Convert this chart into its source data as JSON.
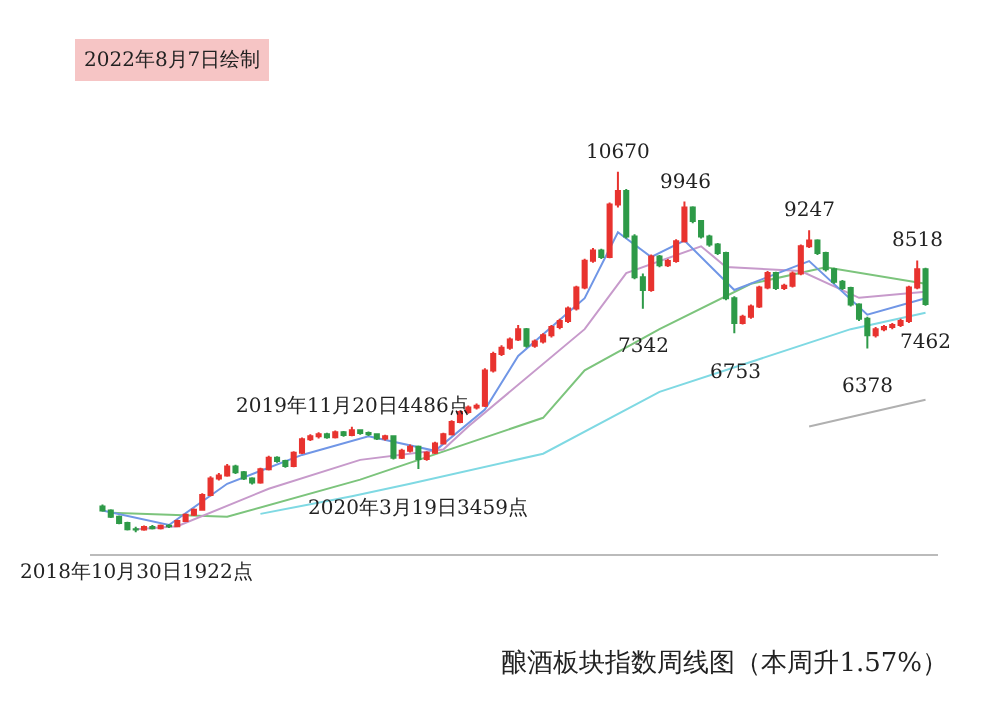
{
  "chart_data": {
    "type": "candlestick",
    "title": "酿酒板块指数周线图（本周升1.57%）",
    "categories": [
      null,
      null,
      null,
      null,
      null,
      null,
      null,
      null,
      null,
      null,
      null,
      null,
      null,
      null,
      null,
      null,
      null,
      null,
      null,
      null,
      null,
      null,
      null,
      null,
      null,
      null,
      null,
      null,
      null,
      null,
      null,
      null,
      null,
      null,
      null,
      null,
      null,
      null,
      null,
      null,
      null,
      null,
      null,
      null,
      null,
      null,
      null,
      null,
      null,
      null,
      null,
      null,
      null,
      null,
      null,
      null,
      null,
      null,
      null,
      null,
      null,
      null,
      null,
      null,
      null,
      null,
      null,
      null,
      null,
      null,
      null,
      null,
      null,
      null,
      null,
      null,
      null,
      null,
      null,
      null,
      null,
      null,
      null,
      null,
      null,
      null,
      null,
      null,
      null,
      null,
      null,
      null,
      null,
      null,
      null,
      null,
      null,
      null,
      null,
      null
    ],
    "colors": [
      "#2e9a48",
      "#2e9a48",
      "#2e9a48",
      "#2e9a48",
      "#2e9a48",
      "#e8332f",
      "#2e9a48",
      "#e8332f",
      "#2e9a48",
      "#e8332f",
      "#e8332f",
      "#e8332f",
      "#e8332f",
      "#e8332f",
      "#e8332f",
      "#e8332f",
      "#2e9a48",
      "#2e9a48",
      "#2e9a48",
      "#e8332f",
      "#e8332f",
      "#2e9a48",
      "#2e9a48",
      "#e8332f",
      "#e8332f",
      "#e8332f",
      "#e8332f",
      "#2e9a48",
      "#e8332f",
      "#2e9a48",
      "#e8332f",
      "#2e9a48",
      "#2e9a48",
      "#2e9a48",
      "#e8332f",
      "#2e9a48",
      "#e8332f",
      "#e8332f",
      "#2e9a48",
      "#e8332f",
      "#e8332f",
      "#e8332f",
      "#e8332f",
      "#e8332f",
      "#e8332f",
      "#e8332f",
      "#e8332f",
      "#e8332f",
      "#e8332f",
      "#e8332f",
      "#e8332f",
      "#2e9a48",
      "#e8332f",
      "#e8332f",
      "#e8332f",
      "#e8332f",
      "#e8332f",
      "#e8332f",
      "#e8332f",
      "#e8332f",
      "#2e9a48",
      "#e8332f",
      "#e8332f",
      "#2e9a48",
      "#2e9a48",
      "#2e9a48",
      "#e8332f",
      "#2e9a48",
      "#e8332f",
      "#e8332f",
      "#e8332f",
      "#2e9a48",
      "#2e9a48",
      "#2e9a48",
      "#2e9a48",
      "#2e9a48",
      "#2e9a48",
      "#e8332f",
      "#e8332f",
      "#e8332f",
      "#e8332f",
      "#2e9a48",
      "#e8332f",
      "#e8332f",
      "#e8332f",
      "#e8332f",
      "#2e9a48",
      "#2e9a48",
      "#2e9a48",
      "#2e9a48",
      "#2e9a48",
      "#2e9a48",
      "#2e9a48",
      "#e8332f",
      "#e8332f",
      "#e8332f",
      "#e8332f",
      "#e8332f",
      "#e8332f",
      "#2e9a48"
    ],
    "ohlc": [
      [
        2550,
        2600,
        2420,
        2450
      ],
      [
        2450,
        2480,
        2270,
        2300
      ],
      [
        2300,
        2330,
        2120,
        2150
      ],
      [
        2150,
        2180,
        1970,
        2000
      ],
      [
        2000,
        2060,
        1922,
        1990
      ],
      [
        1990,
        2090,
        1960,
        2050
      ],
      [
        2050,
        2100,
        1990,
        2020
      ],
      [
        2020,
        2110,
        1990,
        2080
      ],
      [
        2080,
        2120,
        2030,
        2070
      ],
      [
        2070,
        2230,
        2050,
        2200
      ],
      [
        2200,
        2380,
        2180,
        2350
      ],
      [
        2350,
        2500,
        2320,
        2470
      ],
      [
        2470,
        2870,
        2450,
        2830
      ],
      [
        2830,
        3280,
        2800,
        3230
      ],
      [
        3230,
        3360,
        3180,
        3300
      ],
      [
        3300,
        3580,
        3270,
        3520
      ],
      [
        3520,
        3560,
        3340,
        3380
      ],
      [
        3380,
        3410,
        3190,
        3230
      ],
      [
        3230,
        3260,
        3080,
        3130
      ],
      [
        3130,
        3490,
        3100,
        3450
      ],
      [
        3450,
        3780,
        3420,
        3730
      ],
      [
        3730,
        3770,
        3610,
        3650
      ],
      [
        3650,
        3680,
        3490,
        3530
      ],
      [
        3530,
        3890,
        3500,
        3850
      ],
      [
        3850,
        4220,
        3820,
        4180
      ],
      [
        4180,
        4300,
        4140,
        4250
      ],
      [
        4250,
        4350,
        4200,
        4300
      ],
      [
        4300,
        4340,
        4190,
        4230
      ],
      [
        4230,
        4390,
        4200,
        4350
      ],
      [
        4350,
        4380,
        4240,
        4280
      ],
      [
        4280,
        4486,
        4250,
        4400
      ],
      [
        4400,
        4420,
        4290,
        4330
      ],
      [
        4330,
        4370,
        4260,
        4300
      ],
      [
        4300,
        4320,
        4160,
        4200
      ],
      [
        4200,
        4290,
        4150,
        4250
      ],
      [
        4250,
        4270,
        3690,
        3730
      ],
      [
        3730,
        3950,
        3700,
        3900
      ],
      [
        3900,
        4050,
        3860,
        4000
      ],
      [
        4000,
        4030,
        3459,
        3700
      ],
      [
        3700,
        3890,
        3660,
        3850
      ],
      [
        3850,
        4120,
        3820,
        4080
      ],
      [
        4080,
        4340,
        4050,
        4300
      ],
      [
        4300,
        4640,
        4270,
        4600
      ],
      [
        4600,
        4880,
        4570,
        4840
      ],
      [
        4840,
        5000,
        4800,
        4950
      ],
      [
        4950,
        5050,
        4900,
        4990
      ],
      [
        4990,
        5900,
        4960,
        5850
      ],
      [
        5850,
        6300,
        5800,
        6250
      ],
      [
        6250,
        6460,
        6200,
        6400
      ],
      [
        6400,
        6650,
        6350,
        6600
      ],
      [
        6600,
        6950,
        6560,
        6850
      ],
      [
        6850,
        6880,
        6400,
        6450
      ],
      [
        6450,
        6600,
        6400,
        6550
      ],
      [
        6550,
        6750,
        6500,
        6700
      ],
      [
        6700,
        6950,
        6650,
        6900
      ],
      [
        6900,
        7100,
        6850,
        7050
      ],
      [
        7050,
        7400,
        7000,
        7350
      ],
      [
        7350,
        7900,
        7300,
        7860
      ],
      [
        7860,
        8560,
        7820,
        8510
      ],
      [
        8510,
        8820,
        8460,
        8760
      ],
      [
        8760,
        8800,
        8550,
        8600
      ],
      [
        8600,
        9920,
        8570,
        9870
      ],
      [
        9870,
        10670,
        9800,
        10200
      ],
      [
        10200,
        10250,
        9050,
        9100
      ],
      [
        9100,
        9150,
        8060,
        8110
      ],
      [
        8110,
        8200,
        7342,
        7800
      ],
      [
        7800,
        8660,
        7760,
        8610
      ],
      [
        8610,
        8650,
        8350,
        8400
      ],
      [
        8400,
        8550,
        8360,
        8500
      ],
      [
        8500,
        9030,
        8460,
        8980
      ],
      [
        8980,
        9946,
        8950,
        9800
      ],
      [
        9800,
        9830,
        9420,
        9470
      ],
      [
        9470,
        9500,
        9050,
        9100
      ],
      [
        9100,
        9140,
        8850,
        8900
      ],
      [
        8900,
        8940,
        8650,
        8700
      ],
      [
        8700,
        8730,
        7550,
        7600
      ],
      [
        7600,
        7650,
        6753,
        7000
      ],
      [
        7000,
        7200,
        6960,
        7150
      ],
      [
        7150,
        7450,
        7100,
        7400
      ],
      [
        7400,
        7900,
        7360,
        7860
      ],
      [
        7860,
        8260,
        7820,
        8210
      ],
      [
        8210,
        8240,
        7800,
        7850
      ],
      [
        7850,
        7950,
        7800,
        7900
      ],
      [
        7900,
        8250,
        7860,
        8200
      ],
      [
        8200,
        8900,
        8160,
        8860
      ],
      [
        8860,
        9247,
        8820,
        9000
      ],
      [
        9000,
        9030,
        8650,
        8700
      ],
      [
        8700,
        8730,
        8250,
        8300
      ],
      [
        8300,
        8340,
        7950,
        8000
      ],
      [
        8000,
        8040,
        7800,
        7850
      ],
      [
        7850,
        7880,
        7400,
        7450
      ],
      [
        7450,
        7480,
        7050,
        7100
      ],
      [
        7100,
        7150,
        6378,
        6700
      ],
      [
        6700,
        6900,
        6650,
        6850
      ],
      [
        6850,
        6950,
        6800,
        6900
      ],
      [
        6900,
        7000,
        6850,
        6950
      ],
      [
        6950,
        7100,
        6900,
        7050
      ],
      [
        7050,
        7900,
        7000,
        7860
      ],
      [
        7860,
        8518,
        7820,
        8300
      ],
      [
        8300,
        8340,
        7420,
        7462
      ]
    ],
    "series": [
      {
        "type": "line",
        "color": "#7fd9e3",
        "values": [
          null,
          null,
          null,
          null,
          null,
          null,
          null,
          null,
          null,
          null,
          null,
          null,
          null,
          null,
          null,
          null,
          null,
          null,
          null,
          2370,
          null,
          null,
          null,
          null,
          null,
          null,
          null,
          null,
          null,
          null,
          2800,
          null,
          null,
          null,
          null,
          null,
          null,
          3100,
          null,
          null,
          null,
          null,
          null,
          null,
          null,
          null,
          null,
          null,
          null,
          null,
          null,
          null,
          null,
          3830,
          null,
          null,
          null,
          null,
          null,
          null,
          null,
          null,
          null,
          null,
          null,
          null,
          null,
          5330,
          null,
          null,
          null,
          null,
          null,
          null,
          null,
          null,
          null,
          null,
          null,
          null,
          null,
          null,
          null,
          null,
          null,
          null,
          null,
          null,
          null,
          null,
          6850,
          null,
          null,
          null,
          null,
          null,
          null,
          null,
          null,
          7250
        ]
      },
      {
        "type": "line",
        "color": "#7cc47c",
        "values": [
          null,
          2400,
          null,
          null,
          null,
          null,
          null,
          null,
          null,
          null,
          null,
          null,
          null,
          null,
          null,
          2300,
          null,
          null,
          null,
          null,
          null,
          null,
          null,
          null,
          null,
          null,
          null,
          null,
          null,
          null,
          null,
          3200,
          null,
          null,
          null,
          null,
          null,
          null,
          null,
          null,
          null,
          null,
          null,
          null,
          null,
          null,
          null,
          null,
          null,
          null,
          null,
          null,
          null,
          4700,
          null,
          null,
          null,
          null,
          5850,
          null,
          null,
          null,
          null,
          null,
          null,
          null,
          null,
          6850,
          null,
          null,
          null,
          null,
          null,
          null,
          null,
          null,
          null,
          null,
          7950,
          null,
          null,
          null,
          null,
          null,
          null,
          null,
          null,
          8350,
          null,
          null,
          null,
          null,
          null,
          null,
          null,
          null,
          null,
          null,
          null,
          7950
        ]
      },
      {
        "type": "line",
        "color": "#c79acb",
        "values": [
          null,
          null,
          null,
          null,
          2000,
          null,
          null,
          null,
          null,
          2070,
          null,
          null,
          null,
          null,
          null,
          null,
          null,
          null,
          null,
          null,
          2980,
          null,
          null,
          null,
          null,
          null,
          null,
          null,
          null,
          null,
          null,
          3680,
          null,
          null,
          null,
          null,
          null,
          null,
          null,
          null,
          null,
          3930,
          null,
          null,
          4490,
          null,
          null,
          null,
          null,
          null,
          null,
          null,
          null,
          null,
          null,
          null,
          null,
          null,
          6850,
          null,
          null,
          null,
          null,
          8210,
          null,
          null,
          null,
          null,
          null,
          null,
          null,
          null,
          8860,
          null,
          null,
          8360,
          null,
          null,
          null,
          null,
          null,
          null,
          null,
          null,
          8260,
          null,
          null,
          null,
          null,
          null,
          null,
          7610,
          null,
          null,
          null,
          null,
          null,
          null,
          null,
          7760
        ]
      },
      {
        "type": "line",
        "color": "#7096e6",
        "values": [
          2450,
          null,
          null,
          null,
          null,
          null,
          null,
          null,
          2100,
          null,
          null,
          null,
          null,
          null,
          null,
          3100,
          null,
          null,
          null,
          null,
          null,
          null,
          null,
          null,
          3800,
          null,
          null,
          null,
          null,
          null,
          null,
          null,
          4250,
          null,
          null,
          null,
          null,
          null,
          null,
          null,
          3900,
          null,
          null,
          null,
          null,
          null,
          4900,
          null,
          null,
          null,
          6200,
          null,
          null,
          null,
          null,
          null,
          null,
          null,
          7600,
          null,
          null,
          null,
          9200,
          null,
          null,
          null,
          8600,
          null,
          null,
          null,
          9000,
          null,
          null,
          null,
          null,
          null,
          7800,
          null,
          null,
          null,
          null,
          null,
          null,
          null,
          null,
          8500,
          null,
          null,
          null,
          null,
          null,
          null,
          7200,
          null,
          null,
          null,
          null,
          null,
          null,
          7600
        ]
      },
      {
        "type": "line",
        "color": "#b0b0b0",
        "values": [
          null,
          null,
          null,
          null,
          null,
          null,
          null,
          null,
          null,
          null,
          null,
          null,
          null,
          null,
          null,
          null,
          null,
          null,
          null,
          null,
          null,
          null,
          null,
          null,
          null,
          null,
          null,
          null,
          null,
          null,
          null,
          null,
          null,
          null,
          null,
          null,
          null,
          null,
          null,
          null,
          null,
          null,
          null,
          null,
          null,
          null,
          null,
          null,
          null,
          null,
          null,
          null,
          null,
          null,
          null,
          null,
          null,
          null,
          null,
          null,
          null,
          null,
          null,
          null,
          null,
          null,
          null,
          null,
          null,
          null,
          null,
          null,
          null,
          null,
          null,
          null,
          null,
          null,
          null,
          null,
          null,
          null,
          null,
          null,
          null,
          4490,
          null,
          null,
          null,
          null,
          null,
          null,
          null,
          null,
          null,
          null,
          null,
          null,
          null,
          5140
        ]
      }
    ],
    "annotations": [
      {
        "text": "2018年10月30日1922点",
        "y": 1922
      },
      {
        "text": "2019年11月20日4486点",
        "y": 4486
      },
      {
        "text": "2020年3月19日3459点",
        "y": 3459
      },
      {
        "text": "10670",
        "y": 10670
      },
      {
        "text": "7342",
        "y": 7342
      },
      {
        "text": "9946",
        "y": 9946
      },
      {
        "text": "6753",
        "y": 6753
      },
      {
        "text": "9247",
        "y": 9247
      },
      {
        "text": "6378",
        "y": 6378
      },
      {
        "text": "8518",
        "y": 8518
      },
      {
        "text": "7462",
        "y": 7462
      },
      "2022年8月7日绘制"
    ],
    "tick_labels": false
  }
}
